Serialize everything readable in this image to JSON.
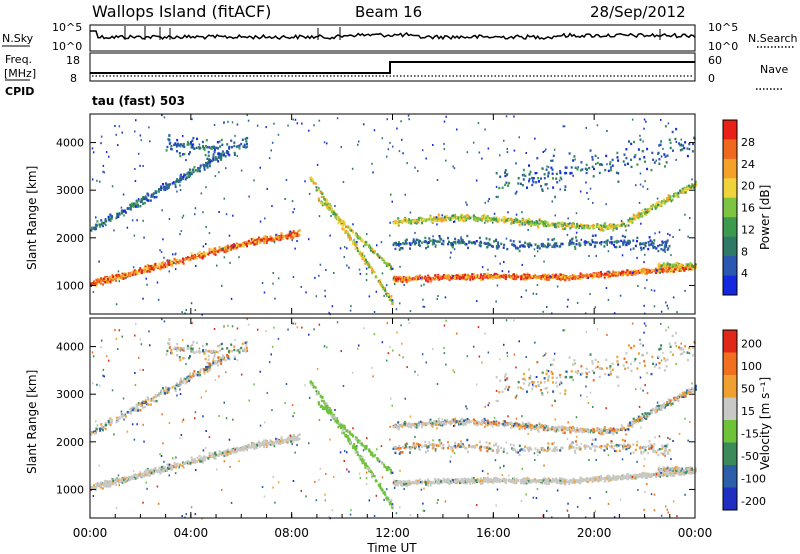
{
  "header": {
    "title": "Wallops Island (fitACF)",
    "beam": "Beam 16",
    "date": "28/Sep/2012"
  },
  "noise_panel": {
    "left_label": "N.Sky",
    "right_label": "N.Search",
    "left_ticks": [
      "10^5",
      "10^0"
    ],
    "right_ticks": [
      "10^5",
      "10^0"
    ],
    "log_scale": true
  },
  "freq_panel": {
    "left_label_top": "Freq.",
    "left_label_unit": "[MHz]",
    "left_ticks": [
      "18",
      "8"
    ],
    "right_label": "Nave",
    "right_ticks": [
      "60",
      "0"
    ],
    "cpid_label": "CPID",
    "cpid_text": "tau (fast) 503"
  },
  "chart_data": [
    {
      "type": "heatmap",
      "name": "power",
      "ylabel": "Slant Range [km]",
      "ylim": [
        400,
        4600
      ],
      "yticks": [
        "1000",
        "2000",
        "3000",
        "4000"
      ],
      "colorbar": {
        "label": "Power [dB]",
        "ticks": [
          "4",
          "8",
          "12",
          "16",
          "20",
          "24",
          "28"
        ],
        "range": [
          0,
          32
        ],
        "colors": [
          "#1428e0",
          "#2a58b0",
          "#2e7a66",
          "#3c9a4e",
          "#7cc442",
          "#f0d23a",
          "#f5a028",
          "#f06820",
          "#e82018"
        ]
      }
    },
    {
      "type": "heatmap",
      "name": "velocity",
      "ylabel": "Slant Range [km]",
      "ylim": [
        400,
        4600
      ],
      "yticks": [
        "1000",
        "2000",
        "3000",
        "4000"
      ],
      "colorbar": {
        "label": "Velocity [m s⁻¹]",
        "ticks": [
          "200",
          "100",
          "50",
          "15",
          "-15",
          "-50",
          "-100",
          "-200"
        ],
        "colors": [
          "#1f2fc2",
          "#2c5fa8",
          "#3a8a5a",
          "#6ec23a",
          "#c8c8c4",
          "#f0a030",
          "#f07020",
          "#e02818"
        ]
      }
    }
  ],
  "x_axis": {
    "label": "Time UT",
    "ticks": [
      "00:00",
      "04:00",
      "08:00",
      "12:00",
      "16:00",
      "20:00",
      "00:00"
    ]
  }
}
